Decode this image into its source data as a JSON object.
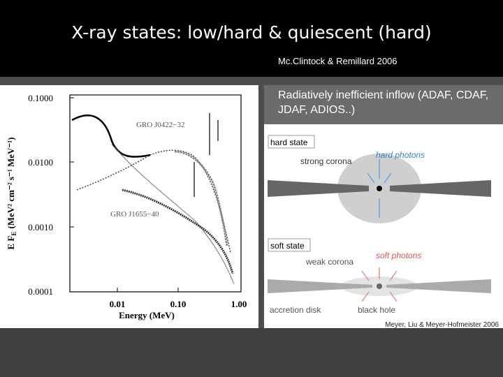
{
  "header": {
    "title": "X-ray states: low/hard & quiescent (hard)",
    "citation": "Mc.Clintock & Remillard 2006"
  },
  "left_figure": {
    "y_label_main": "E F",
    "y_label_sub": "E",
    "y_label_units": "(MeV² cm⁻² s⁻¹ MeV⁻¹)",
    "y_tick_labels": [
      "0.1000",
      "0.0100",
      "0.0010",
      "0.0001"
    ],
    "x_tick_labels": [
      "0.01",
      "0.10",
      "1.00"
    ],
    "x_label": "Energy (MeV)",
    "curve_labels": [
      "GRO J0422−32",
      "GRO J1655−40"
    ]
  },
  "right_panel": {
    "box_text": "Radiatively inefficient inflow (ADAF, CDAF, JDAF, ADIOS..)",
    "hard_state": {
      "label": "hard state",
      "corona": "strong corona",
      "photons": "hard photons"
    },
    "soft_state": {
      "label": "soft state",
      "corona": "weak corona",
      "photons": "soft photons",
      "disk": "accretion disk",
      "hole": "black hole"
    },
    "credit": "Meyer, Liu & Meyer-Hofmeister 2006"
  }
}
